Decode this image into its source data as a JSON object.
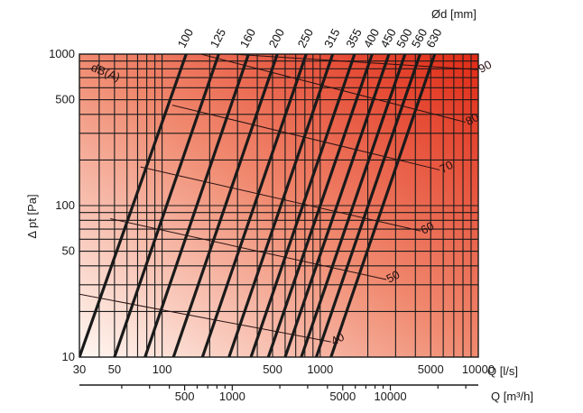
{
  "chart_data": {
    "type": "line",
    "title": "",
    "xlabel": "Q [l/s]",
    "x2label": "Q [m³/h]",
    "ylabel": "Δ pt [Pa]",
    "zlabel": "dB(A)",
    "dlabel": "Ød [mm]",
    "x_scale": "log",
    "y_scale": "log",
    "xlim": [
      30,
      10000
    ],
    "ylim": [
      10,
      1000
    ],
    "x_ticks": [
      "30",
      "50",
      "100",
      "500",
      "1000",
      "5000",
      "10000"
    ],
    "x_tick_values": [
      30,
      50,
      100,
      500,
      1000,
      5000,
      10000
    ],
    "x2_ticks": [
      "500",
      "1000",
      "5000",
      "10000"
    ],
    "x2_tick_values": [
      500,
      1000,
      5000,
      10000
    ],
    "y_ticks": [
      "10",
      "50",
      "100",
      "500",
      "1000"
    ],
    "y_tick_values": [
      10,
      50,
      100,
      500,
      1000
    ],
    "grid": true,
    "series": [
      {
        "name": "100",
        "x": [
          30,
          142
        ],
        "y": [
          10,
          1000
        ]
      },
      {
        "name": "125",
        "x": [
          50,
          228
        ],
        "y": [
          10,
          1000
        ]
      },
      {
        "name": "160",
        "x": [
          78,
          352
        ],
        "y": [
          10,
          1000
        ]
      },
      {
        "name": "200",
        "x": [
          118,
          535
        ],
        "y": [
          10,
          1000
        ]
      },
      {
        "name": "250",
        "x": [
          180,
          815
        ],
        "y": [
          10,
          1000
        ]
      },
      {
        "name": "315",
        "x": [
          265,
          1200
        ],
        "y": [
          10,
          1000
        ]
      },
      {
        "name": "355",
        "x": [
          365,
          1650
        ],
        "y": [
          10,
          1000
        ]
      },
      {
        "name": "400",
        "x": [
          470,
          2130
        ],
        "y": [
          10,
          1000
        ]
      },
      {
        "name": "450",
        "x": [
          600,
          2720
        ],
        "y": [
          10,
          1000
        ]
      },
      {
        "name": "500",
        "x": [
          760,
          3440
        ],
        "y": [
          10,
          1000
        ]
      },
      {
        "name": "560",
        "x": [
          945,
          4280
        ],
        "y": [
          10,
          1000
        ]
      },
      {
        "name": "630",
        "x": [
          1170,
          5300
        ],
        "y": [
          10,
          1000
        ]
      }
    ],
    "db_lines": [
      {
        "label": "40",
        "x": [
          1170,
          30
        ],
        "y": [
          12.6,
          26
        ]
      },
      {
        "label": "50",
        "x": [
          2620,
          47
        ],
        "y": [
          32.5,
          82
        ]
      },
      {
        "label": "60",
        "x": [
          4320,
          73
        ],
        "y": [
          68,
          180
        ]
      },
      {
        "label": "70",
        "x": [
          5700,
          116
        ],
        "y": [
          172,
          460
        ]
      },
      {
        "label": "80",
        "x": [
          8300,
          176
        ],
        "y": [
          355,
          1000
        ]
      },
      {
        "label": "90",
        "x": [
          10000,
          275
        ],
        "y": [
          790,
          1000
        ]
      }
    ]
  },
  "colors": {
    "gradient_light": "#fff8f3",
    "gradient_mid": "#f08a70",
    "gradient_dark": "#e02a16",
    "line": "#1a1a1a",
    "grid": "#1a1a1a"
  }
}
